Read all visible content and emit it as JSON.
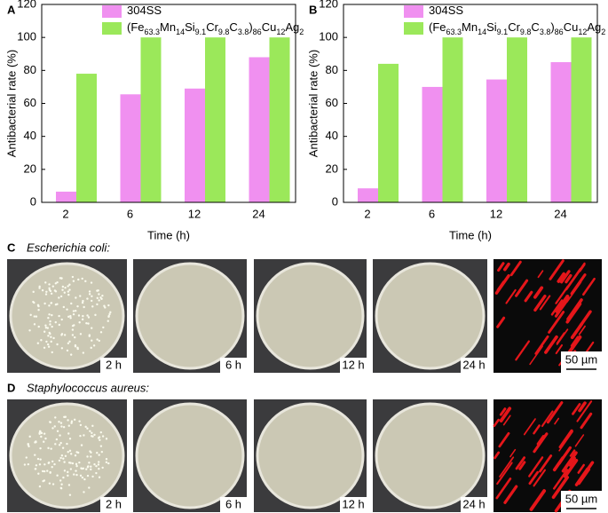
{
  "chart_data": [
    {
      "type": "bar",
      "panel_label": "A",
      "xlabel": "Time (h)",
      "ylabel": "Antibacterial rate (%)",
      "categories": [
        "2",
        "6",
        "12",
        "24"
      ],
      "series": [
        {
          "name": "304SS",
          "color": "#f090f0",
          "values": [
            6.5,
            65.5,
            69,
            88
          ]
        },
        {
          "name": "(Fe63.3Mn14Si9.1Cr9.8C3.8)86Cu12Ag2",
          "color": "#9be85a",
          "values": [
            78,
            100,
            100,
            100
          ]
        }
      ],
      "ylim": [
        0,
        120
      ],
      "yticks": [
        0,
        20,
        40,
        60,
        80,
        100,
        120
      ],
      "legend": "upper left"
    },
    {
      "type": "bar",
      "panel_label": "B",
      "xlabel": "Time (h)",
      "ylabel": "Antibacterial rate (%)",
      "categories": [
        "2",
        "6",
        "12",
        "24"
      ],
      "series": [
        {
          "name": "304SS",
          "color": "#f090f0",
          "values": [
            8.5,
            70,
            74.5,
            85
          ]
        },
        {
          "name": "(Fe63.3Mn14Si9.1Cr9.8C3.8)86Cu12Ag2",
          "color": "#9be85a",
          "values": [
            84,
            100,
            100,
            100
          ]
        }
      ],
      "ylim": [
        0,
        120
      ],
      "yticks": [
        0,
        20,
        40,
        60,
        80,
        100,
        120
      ],
      "legend": "upper left"
    }
  ],
  "photo_panels": [
    {
      "label": "C",
      "title": "Escherichia coli:",
      "times": [
        "2 h",
        "6 h",
        "12 h",
        "24 h"
      ],
      "scale_bar": "50 µm"
    },
    {
      "label": "D",
      "title": "Staphylococcus aureus:",
      "times": [
        "2 h",
        "6 h",
        "12 h",
        "24 h"
      ],
      "scale_bar": "50 µm"
    }
  ]
}
